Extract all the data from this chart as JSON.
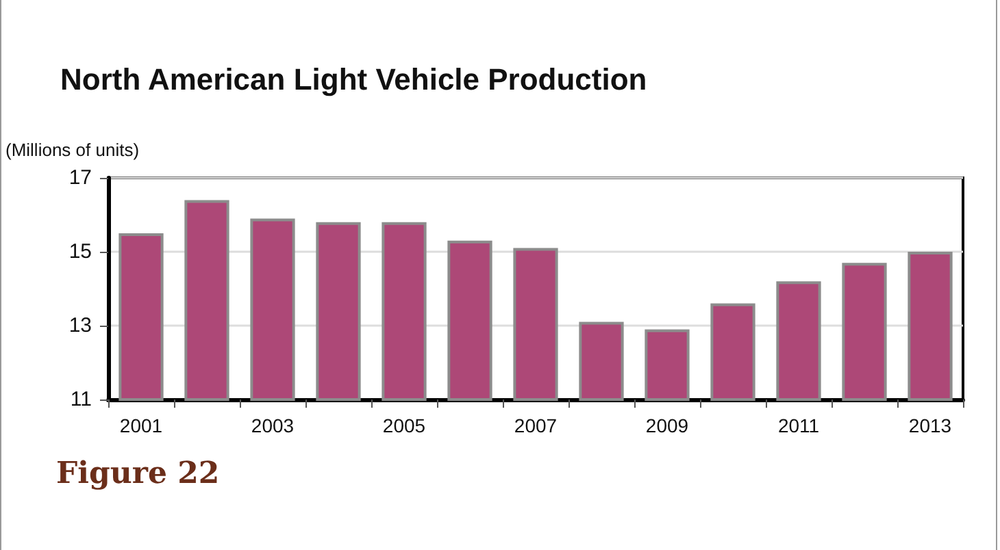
{
  "chart_data": {
    "type": "bar",
    "title": "North American Light Vehicle Production",
    "ylabel": "(Millions of units)",
    "categories": [
      "2001",
      null,
      "2003",
      null,
      "2005",
      null,
      "2007",
      null,
      "2009",
      null,
      "2011",
      null,
      "2013"
    ],
    "values": [
      15.5,
      16.4,
      15.9,
      15.8,
      15.8,
      15.3,
      15.1,
      13.1,
      12.9,
      13.6,
      14.2,
      14.7,
      15.0
    ],
    "color": "#ad4877",
    "ylim": [
      11,
      17
    ],
    "yticks": [
      11,
      13,
      15,
      17
    ],
    "grid": "y",
    "annotations": [
      "Figure 22"
    ]
  }
}
